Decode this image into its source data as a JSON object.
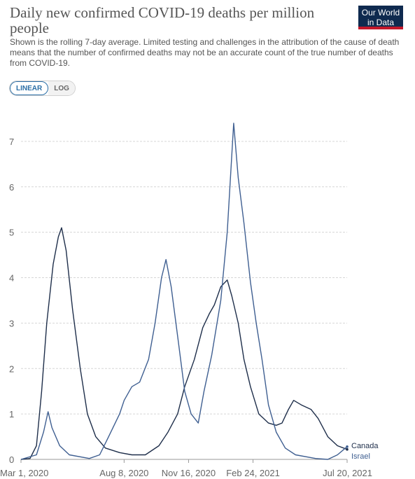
{
  "header": {
    "title": "Daily new confirmed COVID-19 deaths per million people",
    "subtitle": "Shown is the rolling 7-day average. Limited testing and challenges in the attribution of the cause of death means that the number of confirmed deaths may not be an accurate count of the true number of deaths from COVID-19.",
    "logo_line1": "Our World",
    "logo_line2": "in Data"
  },
  "scale_toggle": {
    "linear": "LINEAR",
    "log": "LOG",
    "selected": "LINEAR"
  },
  "chart_data": {
    "type": "line",
    "title": "Daily new confirmed COVID-19 deaths per million people",
    "xlabel": "",
    "ylabel": "",
    "xlim": [
      "2020-03-01",
      "2021-07-20"
    ],
    "ylim": [
      0,
      7.8
    ],
    "y_ticks": [
      0,
      1,
      2,
      3,
      4,
      5,
      6,
      7
    ],
    "x_ticks": [
      "Mar 1, 2020",
      "Aug 8, 2020",
      "Nov 16, 2020",
      "Feb 24, 2021",
      "Jul 20, 2021"
    ],
    "x_tick_dates": [
      "2020-03-01",
      "2020-08-08",
      "2020-11-16",
      "2021-02-24",
      "2021-07-20"
    ],
    "grid": true,
    "legend": "series labels at right end of lines",
    "colors": {
      "Canada": "#1e2e4a",
      "Israel": "#3f5f91"
    },
    "series": [
      {
        "name": "Canada",
        "points": [
          [
            "2020-03-01",
            0
          ],
          [
            "2020-03-15",
            0.02
          ],
          [
            "2020-03-25",
            0.3
          ],
          [
            "2020-04-02",
            1.5
          ],
          [
            "2020-04-10",
            3.0
          ],
          [
            "2020-04-20",
            4.3
          ],
          [
            "2020-04-28",
            4.9
          ],
          [
            "2020-05-03",
            5.1
          ],
          [
            "2020-05-10",
            4.6
          ],
          [
            "2020-05-20",
            3.3
          ],
          [
            "2020-06-01",
            2.0
          ],
          [
            "2020-06-12",
            1.0
          ],
          [
            "2020-06-25",
            0.5
          ],
          [
            "2020-07-10",
            0.25
          ],
          [
            "2020-08-01",
            0.15
          ],
          [
            "2020-08-20",
            0.1
          ],
          [
            "2020-09-10",
            0.1
          ],
          [
            "2020-10-01",
            0.3
          ],
          [
            "2020-10-15",
            0.6
          ],
          [
            "2020-10-30",
            1.0
          ],
          [
            "2020-11-10",
            1.6
          ],
          [
            "2020-11-25",
            2.2
          ],
          [
            "2020-12-08",
            2.9
          ],
          [
            "2020-12-18",
            3.2
          ],
          [
            "2020-12-26",
            3.4
          ],
          [
            "2021-01-05",
            3.8
          ],
          [
            "2021-01-15",
            3.95
          ],
          [
            "2021-01-22",
            3.6
          ],
          [
            "2021-02-01",
            3.0
          ],
          [
            "2021-02-10",
            2.2
          ],
          [
            "2021-02-20",
            1.6
          ],
          [
            "2021-03-05",
            1.0
          ],
          [
            "2021-03-20",
            0.8
          ],
          [
            "2021-04-01",
            0.75
          ],
          [
            "2021-04-10",
            0.8
          ],
          [
            "2021-04-20",
            1.1
          ],
          [
            "2021-04-28",
            1.3
          ],
          [
            "2021-05-10",
            1.2
          ],
          [
            "2021-05-25",
            1.1
          ],
          [
            "2021-06-05",
            0.9
          ],
          [
            "2021-06-20",
            0.5
          ],
          [
            "2021-07-05",
            0.3
          ],
          [
            "2021-07-20",
            0.22
          ]
        ]
      },
      {
        "name": "Israel",
        "points": [
          [
            "2020-03-01",
            0
          ],
          [
            "2020-03-25",
            0.1
          ],
          [
            "2020-04-05",
            0.6
          ],
          [
            "2020-04-12",
            1.05
          ],
          [
            "2020-04-18",
            0.7
          ],
          [
            "2020-04-30",
            0.3
          ],
          [
            "2020-05-15",
            0.1
          ],
          [
            "2020-06-15",
            0.02
          ],
          [
            "2020-07-01",
            0.1
          ],
          [
            "2020-07-15",
            0.5
          ],
          [
            "2020-08-01",
            1.0
          ],
          [
            "2020-08-08",
            1.3
          ],
          [
            "2020-08-20",
            1.6
          ],
          [
            "2020-09-01",
            1.7
          ],
          [
            "2020-09-15",
            2.2
          ],
          [
            "2020-09-25",
            3.0
          ],
          [
            "2020-10-05",
            4.0
          ],
          [
            "2020-10-12",
            4.4
          ],
          [
            "2020-10-20",
            3.8
          ],
          [
            "2020-11-01",
            2.5
          ],
          [
            "2020-11-10",
            1.5
          ],
          [
            "2020-11-20",
            1.0
          ],
          [
            "2020-12-01",
            0.8
          ],
          [
            "2020-12-10",
            1.5
          ],
          [
            "2020-12-22",
            2.3
          ],
          [
            "2021-01-05",
            3.5
          ],
          [
            "2021-01-15",
            5.0
          ],
          [
            "2021-01-25",
            7.4
          ],
          [
            "2021-02-01",
            6.2
          ],
          [
            "2021-02-10",
            5.2
          ],
          [
            "2021-02-20",
            3.9
          ],
          [
            "2021-03-01",
            3.0
          ],
          [
            "2021-03-10",
            2.2
          ],
          [
            "2021-03-20",
            1.2
          ],
          [
            "2021-04-01",
            0.6
          ],
          [
            "2021-04-15",
            0.25
          ],
          [
            "2021-05-01",
            0.1
          ],
          [
            "2021-06-01",
            0.02
          ],
          [
            "2021-06-20",
            0.0
          ],
          [
            "2021-07-05",
            0.1
          ],
          [
            "2021-07-20",
            0.28
          ]
        ]
      }
    ]
  }
}
